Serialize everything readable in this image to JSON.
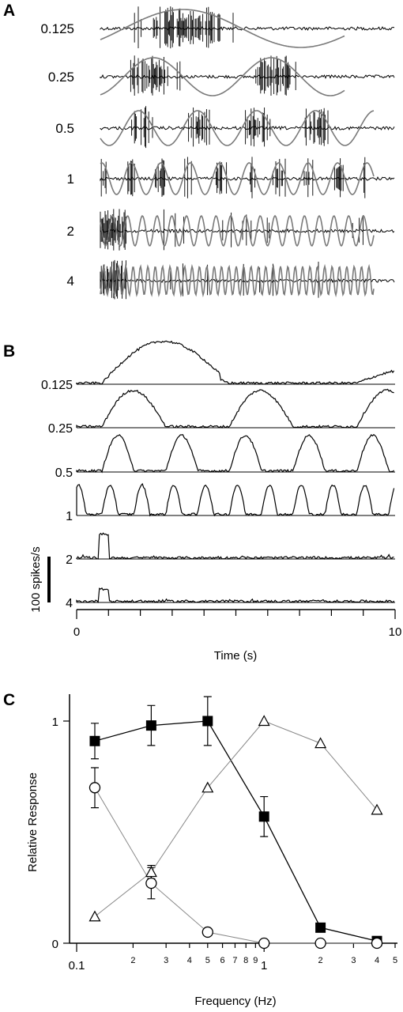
{
  "chart_data": [
    {
      "panel": "A",
      "type": "line",
      "panel_label": "A",
      "rows": [
        {
          "label": "0.125",
          "freq": 0.125
        },
        {
          "label": "0.25",
          "freq": 0.25
        },
        {
          "label": "0.5",
          "freq": 0.5
        },
        {
          "label": "1",
          "freq": 1
        },
        {
          "label": "2",
          "freq": 2
        },
        {
          "label": "4",
          "freq": 4
        }
      ],
      "trace_color": "#000000",
      "stimulus_color": "#7a7a7a"
    },
    {
      "panel": "B",
      "type": "area",
      "panel_label": "B",
      "rows": [
        {
          "label": "0.125",
          "freq": 0.125,
          "peak": 0.95
        },
        {
          "label": "0.25",
          "freq": 0.25,
          "peak": 0.85
        },
        {
          "label": "0.5",
          "freq": 0.5,
          "peak": 0.72
        },
        {
          "label": "1",
          "freq": 1,
          "peak": 0.6
        },
        {
          "label": "2",
          "freq": 2,
          "peak": 0.48
        },
        {
          "label": "4",
          "freq": 4,
          "peak": 0.25
        }
      ],
      "scale_bar_label": "100 spikes/s",
      "xlabel": "Time (s)",
      "xlim": [
        0,
        10
      ],
      "xticks": [
        "0",
        "10"
      ]
    },
    {
      "panel": "C",
      "type": "line",
      "panel_label": "C",
      "xlabel": "Frequency (Hz)",
      "ylabel": "Relative Response",
      "xscale": "log",
      "xlim": [
        0.1,
        5
      ],
      "ylim": [
        0,
        1.05
      ],
      "xtick_labels": [
        {
          "v": 0.1,
          "t": "0.1"
        },
        {
          "v": 0.2,
          "t": "2"
        },
        {
          "v": 0.3,
          "t": "3"
        },
        {
          "v": 0.4,
          "t": "4"
        },
        {
          "v": 0.5,
          "t": "5"
        },
        {
          "v": 0.6,
          "t": "6"
        },
        {
          "v": 0.7,
          "t": "7"
        },
        {
          "v": 0.8,
          "t": "8"
        },
        {
          "v": 0.9,
          "t": "9"
        },
        {
          "v": 1,
          "t": "1"
        },
        {
          "v": 2,
          "t": "2"
        },
        {
          "v": 3,
          "t": "3"
        },
        {
          "v": 4,
          "t": "4"
        },
        {
          "v": 5,
          "t": "5"
        }
      ],
      "ytick_labels": [
        {
          "v": 0,
          "t": "0"
        },
        {
          "v": 1,
          "t": "1"
        }
      ],
      "series": [
        {
          "marker": "filled-square",
          "color": "#000000",
          "line_color": "#000000",
          "x": [
            0.125,
            0.25,
            0.5,
            1,
            2,
            4
          ],
          "y": [
            0.91,
            0.98,
            1.0,
            0.57,
            0.07,
            0.01
          ],
          "err": [
            0.08,
            0.09,
            0.11,
            0.09,
            0,
            0
          ]
        },
        {
          "marker": "open-circle",
          "color": "#000000",
          "line_color": "#888888",
          "x": [
            0.125,
            0.25,
            0.5,
            1,
            2,
            4
          ],
          "y": [
            0.7,
            0.27,
            0.05,
            0.0,
            0.0,
            0.0
          ],
          "err": [
            0.09,
            0.07,
            0,
            0,
            0,
            0
          ]
        },
        {
          "marker": "open-triangle",
          "color": "#000000",
          "line_color": "#888888",
          "x": [
            0.125,
            0.25,
            0.5,
            1,
            2,
            4
          ],
          "y": [
            0.12,
            0.32,
            0.7,
            1.0,
            0.9,
            0.6
          ],
          "err": [
            0,
            0.03,
            0,
            0,
            0,
            0
          ]
        }
      ]
    }
  ]
}
